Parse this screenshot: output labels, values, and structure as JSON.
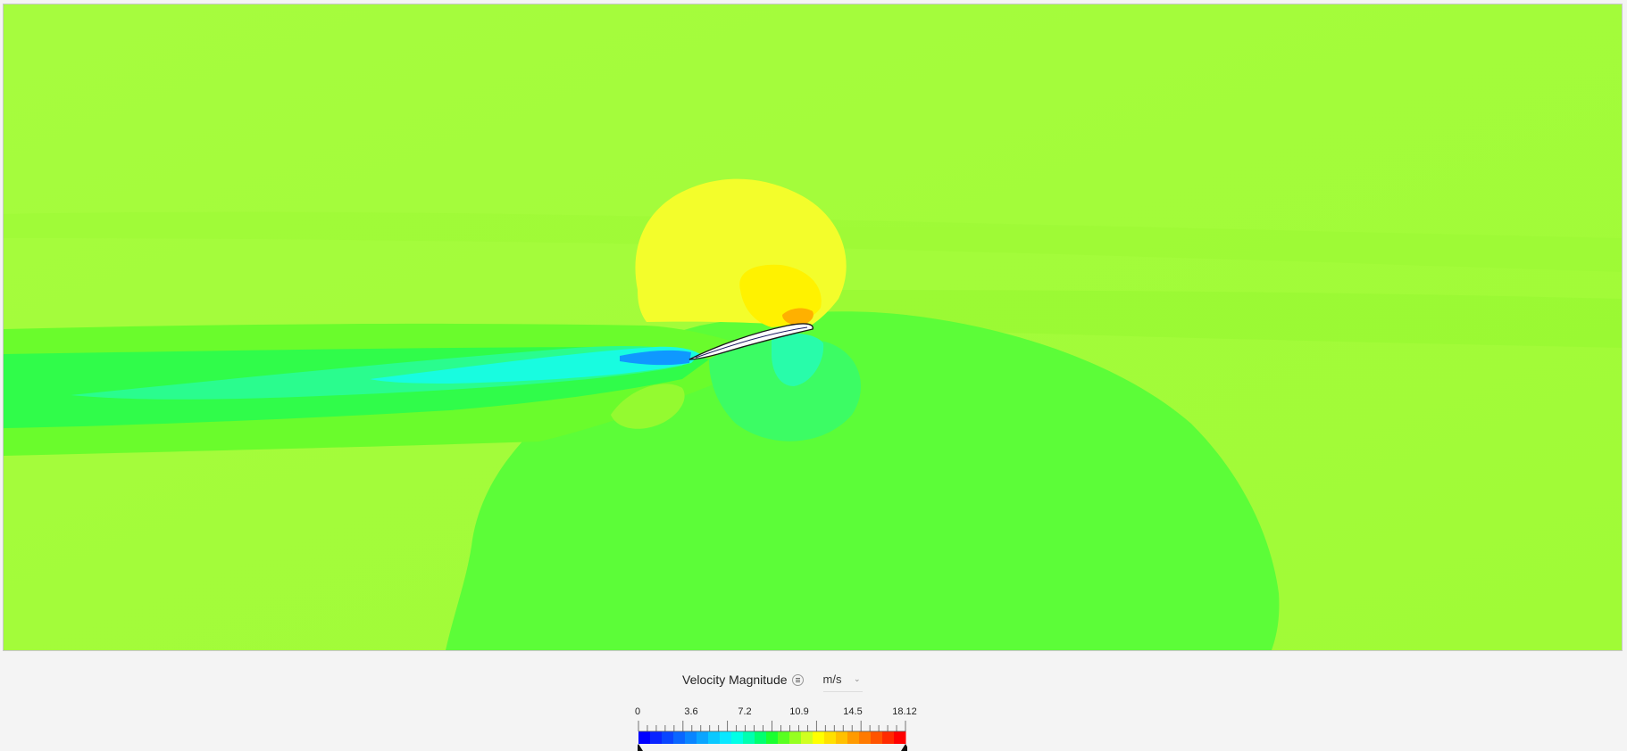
{
  "legend": {
    "title": "Velocity Magnitude",
    "menu_icon": "menu-lines-icon",
    "unit": "m/s",
    "unit_icon": "chevron-down-icon",
    "ticks": [
      "0",
      "3.6",
      "7.2",
      "10.9",
      "14.5",
      "18.12"
    ],
    "range": [
      0,
      18.12
    ],
    "colors": [
      "#0000ff",
      "#0a24ff",
      "#0a45ff",
      "#0a66ff",
      "#0a85ff",
      "#0aa5ff",
      "#0ac8ff",
      "#0ae8ff",
      "#00ffe6",
      "#00ffb0",
      "#00ff70",
      "#1aff30",
      "#58ff20",
      "#96ff20",
      "#d0ff20",
      "#ffff00",
      "#ffe000",
      "#ffc000",
      "#ff9a00",
      "#ff7a00",
      "#ff5400",
      "#ff2a00",
      "#ff0000"
    ]
  }
}
